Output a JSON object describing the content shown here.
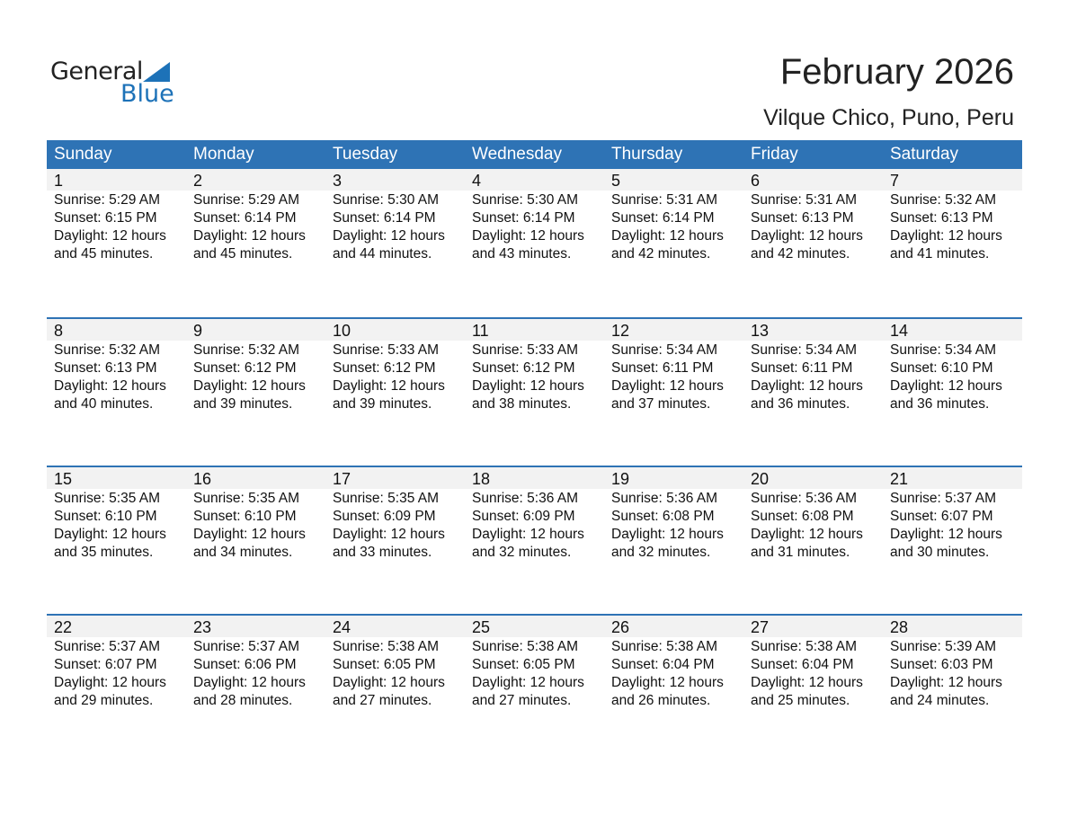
{
  "logo": {
    "general": "General",
    "blue": "Blue"
  },
  "title": "February 2026",
  "location": "Vilque Chico, Puno, Peru",
  "weekdays": [
    "Sunday",
    "Monday",
    "Tuesday",
    "Wednesday",
    "Thursday",
    "Friday",
    "Saturday"
  ],
  "colors": {
    "header": "#2e73b5",
    "day_band": "#f2f2f2",
    "brand": "#1d72b8"
  },
  "weeks": [
    [
      {
        "day": "1",
        "sunrise": "Sunrise: 5:29 AM",
        "sunset": "Sunset: 6:15 PM",
        "daylight": "Daylight: 12 hours",
        "minutes": "and 45 minutes."
      },
      {
        "day": "2",
        "sunrise": "Sunrise: 5:29 AM",
        "sunset": "Sunset: 6:14 PM",
        "daylight": "Daylight: 12 hours",
        "minutes": "and 45 minutes."
      },
      {
        "day": "3",
        "sunrise": "Sunrise: 5:30 AM",
        "sunset": "Sunset: 6:14 PM",
        "daylight": "Daylight: 12 hours",
        "minutes": "and 44 minutes."
      },
      {
        "day": "4",
        "sunrise": "Sunrise: 5:30 AM",
        "sunset": "Sunset: 6:14 PM",
        "daylight": "Daylight: 12 hours",
        "minutes": "and 43 minutes."
      },
      {
        "day": "5",
        "sunrise": "Sunrise: 5:31 AM",
        "sunset": "Sunset: 6:14 PM",
        "daylight": "Daylight: 12 hours",
        "minutes": "and 42 minutes."
      },
      {
        "day": "6",
        "sunrise": "Sunrise: 5:31 AM",
        "sunset": "Sunset: 6:13 PM",
        "daylight": "Daylight: 12 hours",
        "minutes": "and 42 minutes."
      },
      {
        "day": "7",
        "sunrise": "Sunrise: 5:32 AM",
        "sunset": "Sunset: 6:13 PM",
        "daylight": "Daylight: 12 hours",
        "minutes": "and 41 minutes."
      }
    ],
    [
      {
        "day": "8",
        "sunrise": "Sunrise: 5:32 AM",
        "sunset": "Sunset: 6:13 PM",
        "daylight": "Daylight: 12 hours",
        "minutes": "and 40 minutes."
      },
      {
        "day": "9",
        "sunrise": "Sunrise: 5:32 AM",
        "sunset": "Sunset: 6:12 PM",
        "daylight": "Daylight: 12 hours",
        "minutes": "and 39 minutes."
      },
      {
        "day": "10",
        "sunrise": "Sunrise: 5:33 AM",
        "sunset": "Sunset: 6:12 PM",
        "daylight": "Daylight: 12 hours",
        "minutes": "and 39 minutes."
      },
      {
        "day": "11",
        "sunrise": "Sunrise: 5:33 AM",
        "sunset": "Sunset: 6:12 PM",
        "daylight": "Daylight: 12 hours",
        "minutes": "and 38 minutes."
      },
      {
        "day": "12",
        "sunrise": "Sunrise: 5:34 AM",
        "sunset": "Sunset: 6:11 PM",
        "daylight": "Daylight: 12 hours",
        "minutes": "and 37 minutes."
      },
      {
        "day": "13",
        "sunrise": "Sunrise: 5:34 AM",
        "sunset": "Sunset: 6:11 PM",
        "daylight": "Daylight: 12 hours",
        "minutes": "and 36 minutes."
      },
      {
        "day": "14",
        "sunrise": "Sunrise: 5:34 AM",
        "sunset": "Sunset: 6:10 PM",
        "daylight": "Daylight: 12 hours",
        "minutes": "and 36 minutes."
      }
    ],
    [
      {
        "day": "15",
        "sunrise": "Sunrise: 5:35 AM",
        "sunset": "Sunset: 6:10 PM",
        "daylight": "Daylight: 12 hours",
        "minutes": "and 35 minutes."
      },
      {
        "day": "16",
        "sunrise": "Sunrise: 5:35 AM",
        "sunset": "Sunset: 6:10 PM",
        "daylight": "Daylight: 12 hours",
        "minutes": "and 34 minutes."
      },
      {
        "day": "17",
        "sunrise": "Sunrise: 5:35 AM",
        "sunset": "Sunset: 6:09 PM",
        "daylight": "Daylight: 12 hours",
        "minutes": "and 33 minutes."
      },
      {
        "day": "18",
        "sunrise": "Sunrise: 5:36 AM",
        "sunset": "Sunset: 6:09 PM",
        "daylight": "Daylight: 12 hours",
        "minutes": "and 32 minutes."
      },
      {
        "day": "19",
        "sunrise": "Sunrise: 5:36 AM",
        "sunset": "Sunset: 6:08 PM",
        "daylight": "Daylight: 12 hours",
        "minutes": "and 32 minutes."
      },
      {
        "day": "20",
        "sunrise": "Sunrise: 5:36 AM",
        "sunset": "Sunset: 6:08 PM",
        "daylight": "Daylight: 12 hours",
        "minutes": "and 31 minutes."
      },
      {
        "day": "21",
        "sunrise": "Sunrise: 5:37 AM",
        "sunset": "Sunset: 6:07 PM",
        "daylight": "Daylight: 12 hours",
        "minutes": "and 30 minutes."
      }
    ],
    [
      {
        "day": "22",
        "sunrise": "Sunrise: 5:37 AM",
        "sunset": "Sunset: 6:07 PM",
        "daylight": "Daylight: 12 hours",
        "minutes": "and 29 minutes."
      },
      {
        "day": "23",
        "sunrise": "Sunrise: 5:37 AM",
        "sunset": "Sunset: 6:06 PM",
        "daylight": "Daylight: 12 hours",
        "minutes": "and 28 minutes."
      },
      {
        "day": "24",
        "sunrise": "Sunrise: 5:38 AM",
        "sunset": "Sunset: 6:05 PM",
        "daylight": "Daylight: 12 hours",
        "minutes": "and 27 minutes."
      },
      {
        "day": "25",
        "sunrise": "Sunrise: 5:38 AM",
        "sunset": "Sunset: 6:05 PM",
        "daylight": "Daylight: 12 hours",
        "minutes": "and 27 minutes."
      },
      {
        "day": "26",
        "sunrise": "Sunrise: 5:38 AM",
        "sunset": "Sunset: 6:04 PM",
        "daylight": "Daylight: 12 hours",
        "minutes": "and 26 minutes."
      },
      {
        "day": "27",
        "sunrise": "Sunrise: 5:38 AM",
        "sunset": "Sunset: 6:04 PM",
        "daylight": "Daylight: 12 hours",
        "minutes": "and 25 minutes."
      },
      {
        "day": "28",
        "sunrise": "Sunrise: 5:39 AM",
        "sunset": "Sunset: 6:03 PM",
        "daylight": "Daylight: 12 hours",
        "minutes": "and 24 minutes."
      }
    ]
  ]
}
